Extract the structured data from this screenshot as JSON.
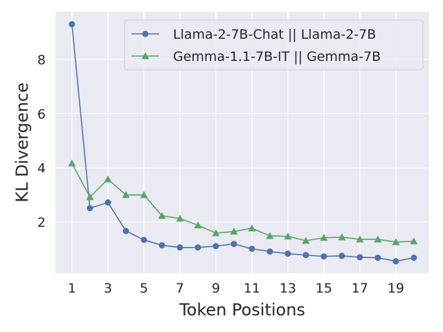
{
  "chart_data": {
    "type": "line",
    "title": "",
    "xlabel": "Token Positions",
    "ylabel": "KL Divergence",
    "xlim": [
      0.08,
      20.85
    ],
    "ylim": [
      0.11,
      9.76
    ],
    "xticks": [
      1,
      3,
      5,
      7,
      9,
      11,
      13,
      15,
      17,
      19
    ],
    "yticks": [
      2,
      4,
      6,
      8
    ],
    "grid": true,
    "legend_position": "top-right",
    "x": [
      1,
      2,
      3,
      4,
      5,
      6,
      7,
      8,
      9,
      10,
      11,
      12,
      13,
      14,
      15,
      16,
      17,
      18,
      19,
      20
    ],
    "series": [
      {
        "name": "Llama-2-7B-Chat || Llama-2-7B",
        "color": "#4c72b0",
        "marker": "circle",
        "values": [
          9.3,
          2.51,
          2.72,
          1.67,
          1.34,
          1.14,
          1.06,
          1.06,
          1.11,
          1.19,
          1.01,
          0.91,
          0.83,
          0.78,
          0.73,
          0.75,
          0.7,
          0.68,
          0.55,
          0.68
        ]
      },
      {
        "name": "Gemma-1.1-7B-IT || Gemma-7B",
        "color": "#55a868",
        "marker": "triangle",
        "values": [
          4.17,
          2.92,
          3.58,
          3.0,
          3.0,
          2.23,
          2.13,
          1.88,
          1.59,
          1.65,
          1.77,
          1.49,
          1.47,
          1.31,
          1.42,
          1.44,
          1.36,
          1.36,
          1.26,
          1.29
        ]
      }
    ]
  }
}
